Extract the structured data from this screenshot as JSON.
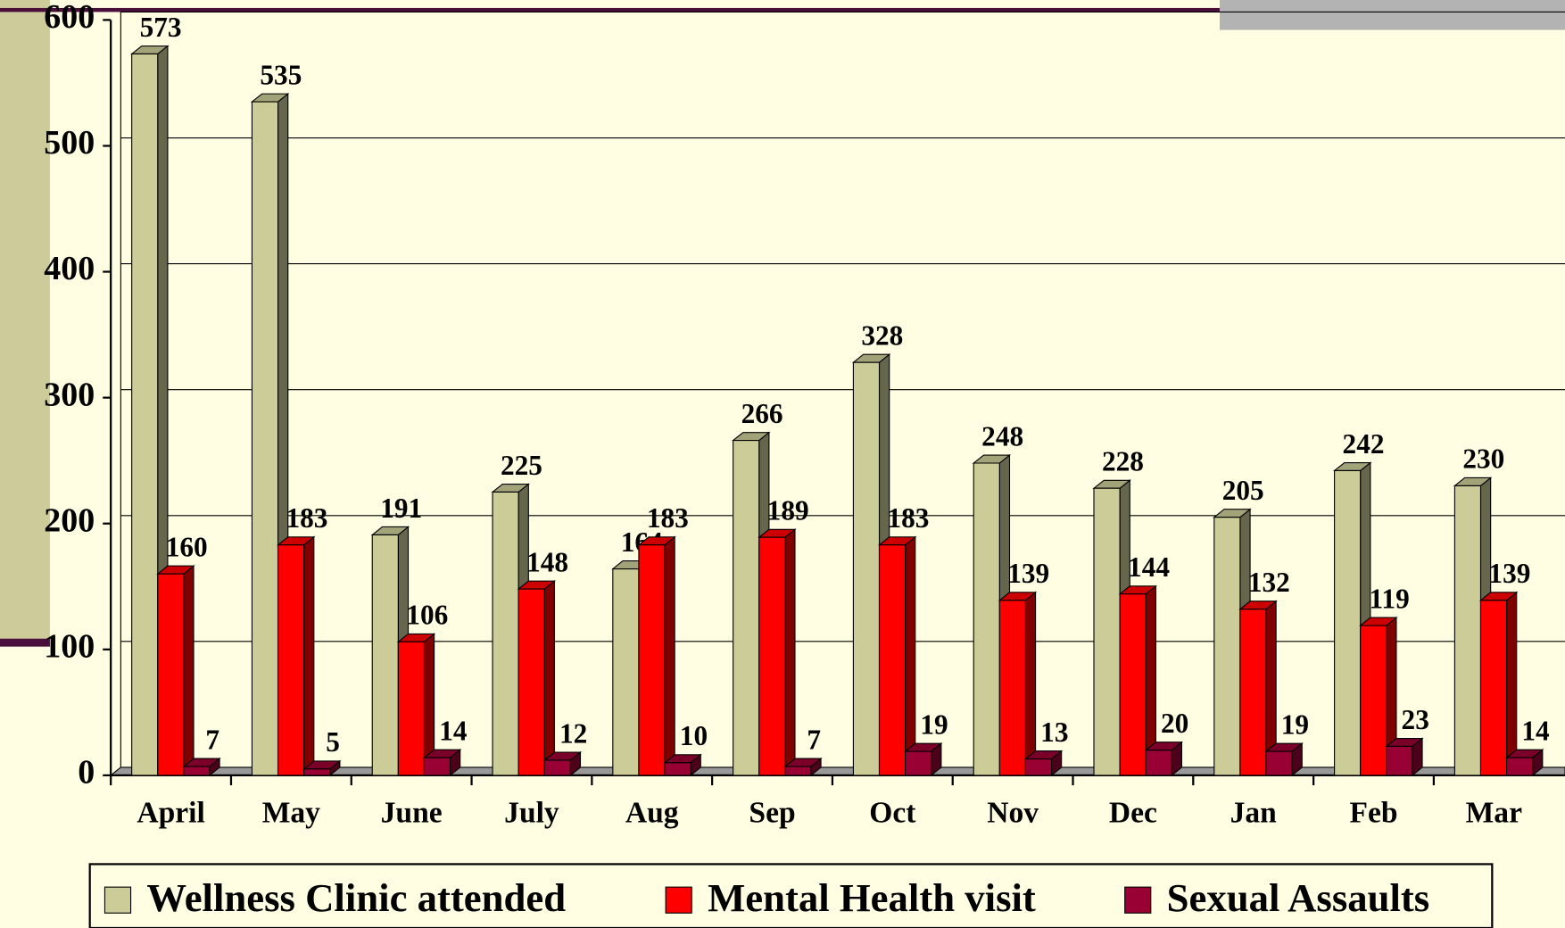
{
  "chart_data": {
    "type": "bar3d",
    "categories": [
      "April",
      "May",
      "June",
      "July",
      "Aug",
      "Sep",
      "Oct",
      "Nov",
      "Dec",
      "Jan",
      "Feb",
      "Mar"
    ],
    "series": [
      {
        "name": "Wellness Clinic attended",
        "color": "#cccc99",
        "values": [
          573,
          535,
          191,
          225,
          164,
          266,
          328,
          248,
          228,
          205,
          242,
          230
        ]
      },
      {
        "name": "Mental Health visit",
        "color": "#ff0000",
        "values": [
          160,
          183,
          106,
          148,
          183,
          189,
          183,
          139,
          144,
          132,
          119,
          139
        ]
      },
      {
        "name": "Sexual Assaults",
        "color": "#990033",
        "values": [
          7,
          5,
          14,
          12,
          10,
          7,
          19,
          13,
          20,
          19,
          23,
          14
        ]
      }
    ],
    "ylim": [
      0,
      600
    ],
    "yticks": [
      0,
      100,
      200,
      300,
      400,
      500,
      600
    ],
    "grid": true
  }
}
